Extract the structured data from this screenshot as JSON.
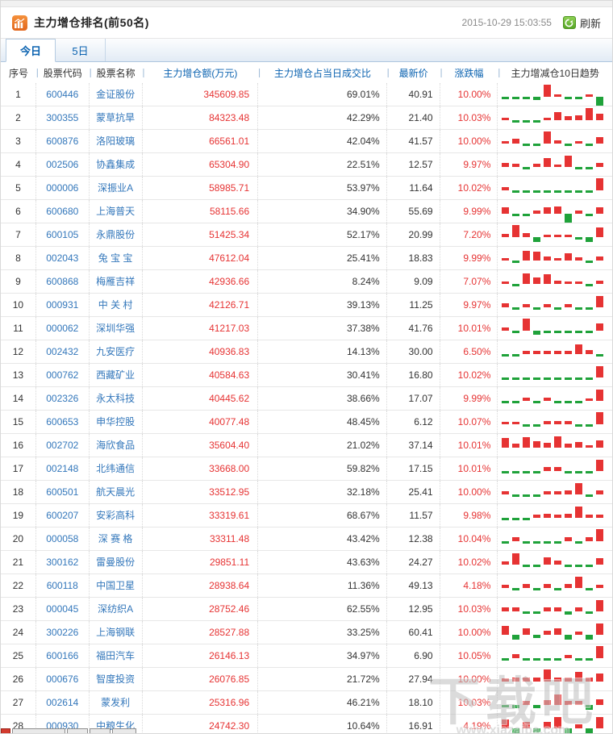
{
  "window": {
    "title": "主力增仓排名(前50名)",
    "timestamp": "2015-10-29 15:03:55",
    "refresh_label": "刷新"
  },
  "tabs": [
    {
      "label": "今日",
      "active": true
    },
    {
      "label": "5日",
      "active": false
    }
  ],
  "colors": {
    "up": "#e63333",
    "down": "#1fa23a",
    "link": "#0a62b0",
    "code_blue": "#3377bb"
  },
  "table": {
    "columns": [
      "序号",
      "股票代码",
      "股票名称",
      "主力增仓额(万元)",
      "主力增仓占当日成交比",
      "最新价",
      "涨跌幅",
      "主力增减仓10日趋势"
    ],
    "rows": [
      {
        "no": "1",
        "code": "600446",
        "name": "金证股份",
        "amount": "345609.85",
        "ratio": "69.01%",
        "price": "40.91",
        "change": "10.00%",
        "trend": [
          -0.2,
          -0.2,
          -0.2,
          -0.35,
          1.0,
          0.2,
          -0.2,
          -0.2,
          0.2,
          -1.0
        ]
      },
      {
        "no": "2",
        "code": "300355",
        "name": "蒙草抗旱",
        "amount": "84323.48",
        "ratio": "42.29%",
        "price": "21.40",
        "change": "10.03%",
        "trend": [
          0.2,
          -0.2,
          -0.2,
          -0.2,
          0.2,
          0.65,
          0.3,
          0.4,
          1.0,
          0.55
        ]
      },
      {
        "no": "3",
        "code": "600876",
        "name": "洛阳玻璃",
        "amount": "66561.01",
        "ratio": "42.04%",
        "price": "41.57",
        "change": "10.00%",
        "trend": [
          0.2,
          0.4,
          -0.2,
          -0.2,
          1.0,
          0.25,
          -0.2,
          0.2,
          -0.15,
          0.55
        ]
      },
      {
        "no": "4",
        "code": "002506",
        "name": "协鑫集成",
        "amount": "65304.90",
        "ratio": "22.51%",
        "price": "12.57",
        "change": "9.97%",
        "trend": [
          0.35,
          0.25,
          -0.15,
          0.25,
          0.7,
          0.2,
          0.95,
          -0.2,
          -0.15,
          0.35
        ]
      },
      {
        "no": "5",
        "code": "000006",
        "name": "深振业A",
        "amount": "58985.71",
        "ratio": "53.97%",
        "price": "11.64",
        "change": "10.02%",
        "trend": [
          0.25,
          -0.15,
          -0.15,
          -0.15,
          -0.15,
          -0.15,
          -0.15,
          -0.15,
          -0.2,
          1.0
        ]
      },
      {
        "no": "6",
        "code": "600680",
        "name": "上海普天",
        "amount": "58115.66",
        "ratio": "34.90%",
        "price": "55.69",
        "change": "9.99%",
        "trend": [
          0.5,
          -0.25,
          -0.25,
          0.25,
          0.55,
          0.6,
          -1.0,
          0.25,
          -0.15,
          0.55
        ]
      },
      {
        "no": "7",
        "code": "600105",
        "name": "永鼎股份",
        "amount": "51425.34",
        "ratio": "52.17%",
        "price": "20.99",
        "change": "7.20%",
        "trend": [
          0.25,
          1.0,
          0.3,
          -0.5,
          0.2,
          0.2,
          0.2,
          -0.2,
          -0.5,
          0.8
        ]
      },
      {
        "no": "8",
        "code": "002043",
        "name": "兔 宝 宝",
        "amount": "47612.04",
        "ratio": "25.41%",
        "price": "18.83",
        "change": "9.99%",
        "trend": [
          0.2,
          -0.25,
          0.8,
          0.75,
          0.35,
          0.2,
          0.6,
          0.25,
          -0.2,
          0.3
        ]
      },
      {
        "no": "9",
        "code": "600868",
        "name": "梅雁吉祥",
        "amount": "42936.66",
        "ratio": "8.24%",
        "price": "9.09",
        "change": "7.07%",
        "trend": [
          0.2,
          -0.25,
          0.85,
          0.5,
          0.8,
          0.25,
          0.2,
          0.2,
          -0.2,
          0.25
        ]
      },
      {
        "no": "10",
        "code": "000931",
        "name": "中 关 村",
        "amount": "42126.71",
        "ratio": "39.13%",
        "price": "11.25",
        "change": "9.97%",
        "trend": [
          0.3,
          -0.2,
          0.25,
          -0.2,
          0.25,
          -0.2,
          0.25,
          -0.2,
          -0.2,
          0.95
        ]
      },
      {
        "no": "11",
        "code": "000062",
        "name": "深圳华强",
        "amount": "41217.03",
        "ratio": "37.38%",
        "price": "41.76",
        "change": "10.01%",
        "trend": [
          0.25,
          -0.25,
          1.0,
          -0.45,
          -0.25,
          -0.25,
          -0.25,
          -0.25,
          -0.25,
          0.6
        ]
      },
      {
        "no": "12",
        "code": "002432",
        "name": "九安医疗",
        "amount": "40936.83",
        "ratio": "14.13%",
        "price": "30.00",
        "change": "6.50%",
        "trend": [
          -0.2,
          -0.2,
          0.25,
          0.25,
          0.25,
          0.25,
          0.25,
          0.8,
          0.35,
          -0.25
        ]
      },
      {
        "no": "13",
        "code": "000762",
        "name": "西藏矿业",
        "amount": "40584.63",
        "ratio": "30.41%",
        "price": "16.80",
        "change": "10.02%",
        "trend": [
          -0.2,
          -0.2,
          -0.2,
          -0.2,
          -0.2,
          -0.2,
          -0.2,
          -0.2,
          -0.2,
          0.95
        ]
      },
      {
        "no": "14",
        "code": "002326",
        "name": "永太科技",
        "amount": "40445.62",
        "ratio": "38.66%",
        "price": "17.07",
        "change": "9.99%",
        "trend": [
          -0.2,
          -0.2,
          0.25,
          -0.3,
          0.25,
          -0.2,
          -0.2,
          -0.2,
          0.2,
          0.95
        ]
      },
      {
        "no": "15",
        "code": "600653",
        "name": "申华控股",
        "amount": "40077.48",
        "ratio": "48.45%",
        "price": "6.12",
        "change": "10.07%",
        "trend": [
          0.2,
          0.2,
          -0.25,
          -0.25,
          0.25,
          0.25,
          0.25,
          -0.2,
          -0.2,
          1.0
        ]
      },
      {
        "no": "16",
        "code": "002702",
        "name": "海欣食品",
        "amount": "35604.40",
        "ratio": "21.02%",
        "price": "37.14",
        "change": "10.01%",
        "trend": [
          0.8,
          0.3,
          0.85,
          0.55,
          0.4,
          0.95,
          0.3,
          0.45,
          0.2,
          0.6
        ]
      },
      {
        "no": "17",
        "code": "002148",
        "name": "北纬通信",
        "amount": "33668.00",
        "ratio": "59.82%",
        "price": "17.15",
        "change": "10.01%",
        "trend": [
          -0.2,
          -0.2,
          -0.2,
          -0.2,
          0.3,
          0.3,
          -0.2,
          -0.2,
          -0.2,
          0.95
        ]
      },
      {
        "no": "18",
        "code": "600501",
        "name": "航天晨光",
        "amount": "33512.95",
        "ratio": "32.18%",
        "price": "25.41",
        "change": "10.00%",
        "trend": [
          0.25,
          -0.25,
          -0.2,
          -0.2,
          0.25,
          0.25,
          0.35,
          0.9,
          -0.25,
          0.35
        ]
      },
      {
        "no": "19",
        "code": "600207",
        "name": "安彩高科",
        "amount": "33319.61",
        "ratio": "68.67%",
        "price": "11.57",
        "change": "9.98%",
        "trend": [
          -0.2,
          -0.2,
          -0.2,
          0.25,
          0.3,
          0.25,
          0.3,
          0.95,
          0.25,
          0.25
        ]
      },
      {
        "no": "20",
        "code": "000058",
        "name": "深 赛 格",
        "amount": "33311.48",
        "ratio": "43.42%",
        "price": "12.38",
        "change": "10.04%",
        "trend": [
          -0.2,
          0.3,
          -0.2,
          -0.2,
          -0.2,
          -0.2,
          0.3,
          -0.2,
          0.35,
          1.0
        ]
      },
      {
        "no": "21",
        "code": "300162",
        "name": "雷曼股份",
        "amount": "29851.11",
        "ratio": "43.63%",
        "price": "24.27",
        "change": "10.02%",
        "trend": [
          0.25,
          0.95,
          -0.3,
          -0.25,
          0.6,
          0.35,
          -0.25,
          -0.25,
          -0.2,
          0.5
        ]
      },
      {
        "no": "22",
        "code": "600118",
        "name": "中国卫星",
        "amount": "28938.64",
        "ratio": "11.36%",
        "price": "49.13",
        "change": "4.18%",
        "trend": [
          0.25,
          -0.25,
          0.3,
          -0.25,
          0.3,
          -0.25,
          0.3,
          0.9,
          -0.3,
          0.25
        ]
      },
      {
        "no": "23",
        "code": "000045",
        "name": "深纺织A",
        "amount": "28752.46",
        "ratio": "62.55%",
        "price": "12.95",
        "change": "10.03%",
        "trend": [
          0.3,
          0.3,
          -0.25,
          -0.25,
          0.3,
          0.35,
          -0.4,
          0.3,
          -0.25,
          0.9
        ]
      },
      {
        "no": "24",
        "code": "300226",
        "name": "上海钢联",
        "amount": "28527.88",
        "ratio": "33.25%",
        "price": "60.41",
        "change": "10.00%",
        "trend": [
          0.75,
          -0.55,
          0.5,
          -0.35,
          0.3,
          0.55,
          -0.5,
          0.25,
          -0.5,
          0.95
        ]
      },
      {
        "no": "25",
        "code": "600166",
        "name": "福田汽车",
        "amount": "26146.13",
        "ratio": "34.97%",
        "price": "6.90",
        "change": "10.05%",
        "trend": [
          -0.25,
          0.3,
          -0.3,
          -0.25,
          -0.25,
          -0.25,
          0.25,
          -0.25,
          -0.25,
          1.0
        ]
      },
      {
        "no": "26",
        "code": "000676",
        "name": "智度投资",
        "amount": "26076.85",
        "ratio": "21.72%",
        "price": "27.94",
        "change": "10.00%",
        "trend": [
          0.25,
          0.3,
          0.3,
          0.35,
          1.0,
          0.35,
          0.3,
          0.8,
          0.35,
          0.65
        ]
      },
      {
        "no": "27",
        "code": "002614",
        "name": "蒙发利",
        "amount": "25316.96",
        "ratio": "46.21%",
        "price": "18.10",
        "change": "10.03%",
        "trend": [
          -0.3,
          -0.35,
          0.3,
          -0.35,
          0.4,
          0.85,
          0.3,
          0.35,
          -0.5,
          0.45
        ]
      },
      {
        "no": "28",
        "code": "000930",
        "name": "中粮生化",
        "amount": "24742.30",
        "ratio": "10.64%",
        "price": "16.91",
        "change": "4.19%",
        "trend": [
          0.75,
          -0.55,
          0.55,
          -0.45,
          0.5,
          0.9,
          -0.55,
          0.35,
          -0.55,
          0.95
        ]
      }
    ]
  },
  "watermark": {
    "text": "下载吧",
    "url": "www.xiazaiba.com"
  }
}
